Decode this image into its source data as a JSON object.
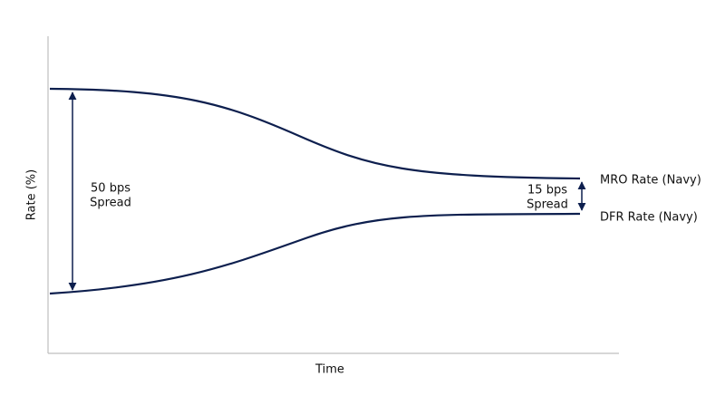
{
  "axes": {
    "x_label": "Time",
    "y_label": "Rate (%)"
  },
  "lines": [
    {
      "label": "MRO Rate (Navy)"
    },
    {
      "label": "DFR Rate (Navy)"
    }
  ],
  "annotations": [
    {
      "lines": [
        "50 bps",
        "Spread"
      ]
    },
    {
      "lines": [
        "15 bps",
        "Spread"
      ]
    }
  ]
}
